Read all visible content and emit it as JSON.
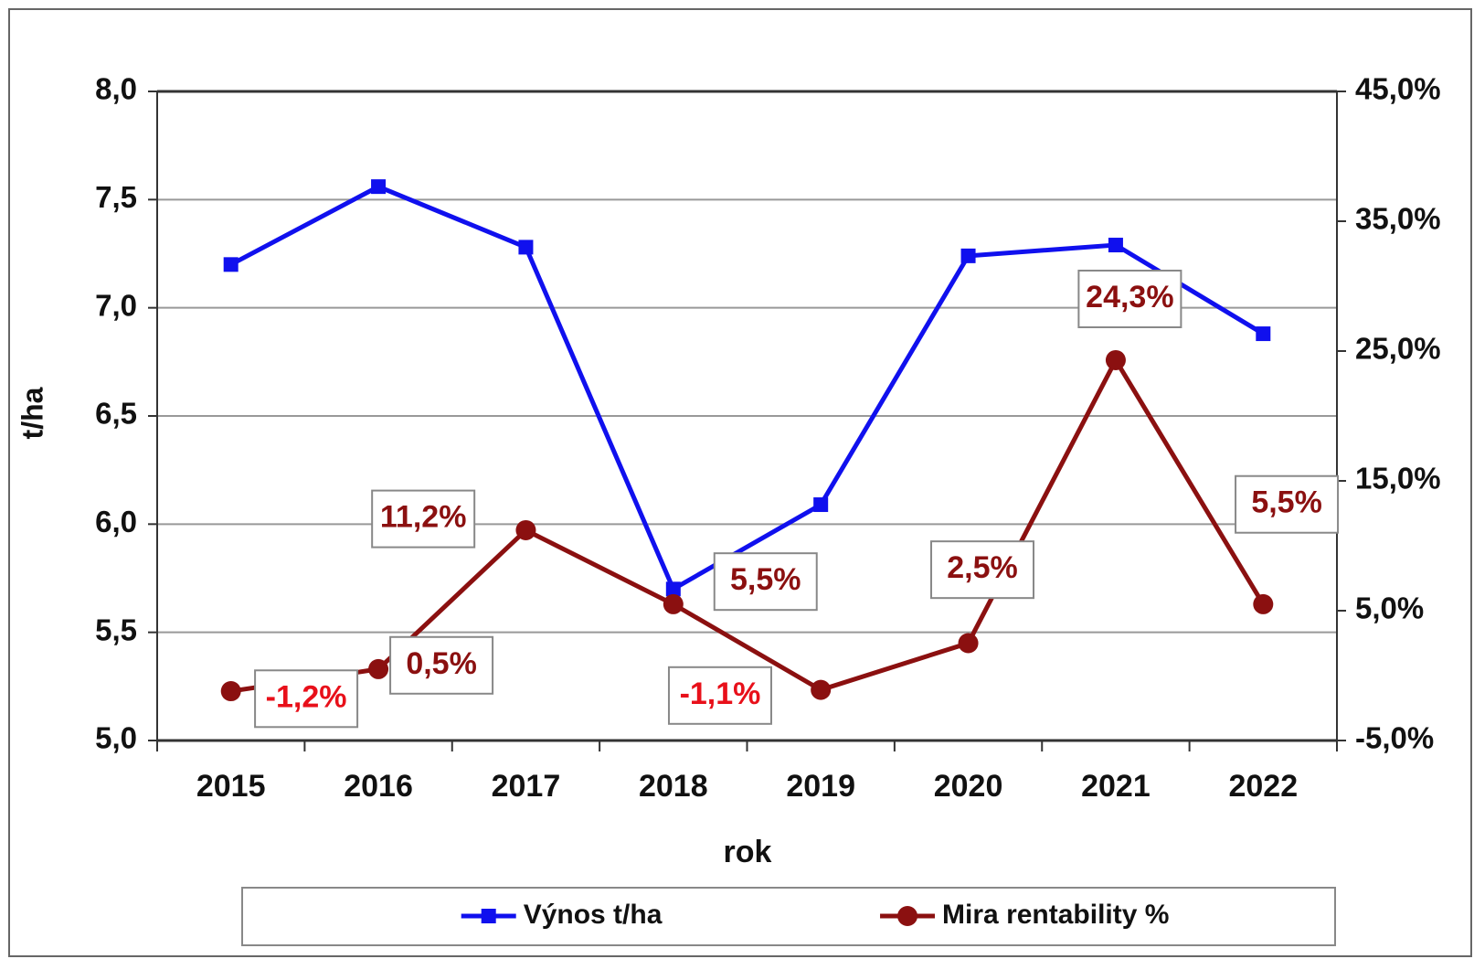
{
  "chart_data": {
    "type": "line",
    "x_label": "rok",
    "y_label": "t/ha",
    "categories": [
      "2015",
      "2016",
      "2017",
      "2018",
      "2019",
      "2020",
      "2021",
      "2022"
    ],
    "series": [
      {
        "name": "Výnos t/ha",
        "color": "#1010ee",
        "marker": "square",
        "axis": "y",
        "values": [
          7.2,
          7.56,
          7.28,
          5.7,
          6.09,
          7.24,
          7.29,
          6.88
        ]
      },
      {
        "name": "Mira rentability %",
        "color": "#8b1010",
        "marker": "circle",
        "axis": "y2",
        "label_color": "#8b1010",
        "negative_label_color": "#e8101a",
        "values": [
          -1.2,
          0.5,
          11.2,
          5.5,
          -1.1,
          2.5,
          24.3,
          5.5
        ],
        "value_labels": [
          "-1,2%",
          "0,5%",
          "11,2%",
          "5,5%",
          "-1,1%",
          "2,5%",
          "24,3%",
          "5,5%"
        ]
      }
    ],
    "ylim": [
      5,
      8
    ],
    "yticks": [
      {
        "value": 5,
        "label": "5,0"
      },
      {
        "value": 5.5,
        "label": "5,5"
      },
      {
        "value": 6,
        "label": "6,0"
      },
      {
        "value": 6.5,
        "label": "6,5"
      },
      {
        "value": 7,
        "label": "7,0"
      },
      {
        "value": 7.5,
        "label": "7,5"
      },
      {
        "value": 8,
        "label": "8,0"
      }
    ],
    "y2lim": [
      -5,
      45
    ],
    "y2ticks": [
      {
        "value": -5,
        "label": "-5,0%"
      },
      {
        "value": 5,
        "label": "5,0%"
      },
      {
        "value": 15,
        "label": "15,0%"
      },
      {
        "value": 25,
        "label": "25,0%"
      },
      {
        "value": 35,
        "label": "35,0%"
      },
      {
        "value": 45,
        "label": "45,0%"
      }
    ],
    "grid": true,
    "legend": "bottom"
  }
}
